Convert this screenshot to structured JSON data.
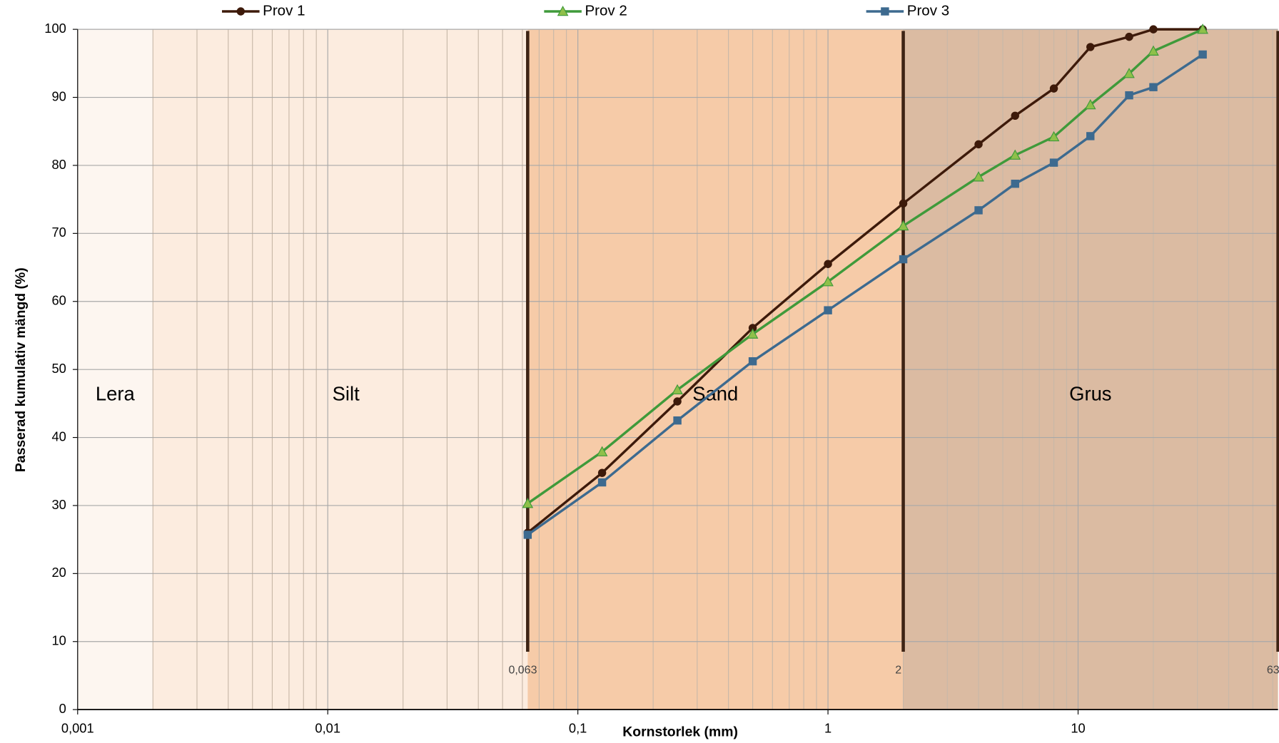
{
  "chart_data": {
    "type": "line",
    "y_label": "Passerad kumulativ mängd (%)",
    "x_label": "Kornstorlek (mm)",
    "log_x": true,
    "grid": true,
    "legend": "top",
    "xlim": [
      0.001,
      63
    ],
    "ylim": [
      0,
      100
    ],
    "yticks": [
      0,
      10,
      20,
      30,
      40,
      50,
      60,
      70,
      80,
      90,
      100
    ],
    "xticks": [
      {
        "value": 0.001,
        "label": "0,001"
      },
      {
        "value": 0.01,
        "label": "0,01"
      },
      {
        "value": 0.1,
        "label": "0,1"
      },
      1,
      10
    ],
    "regions": [
      {
        "name": "Lera",
        "from": 0.001,
        "to": 0.002,
        "color": "#fdf6f0"
      },
      {
        "name": "Silt",
        "from": 0.002,
        "to": 0.063,
        "color": "#fcecdf"
      },
      {
        "name": "Sand",
        "from": 0.063,
        "to": 2,
        "color": "#f6cba8"
      },
      {
        "name": "Grus",
        "from": 2,
        "to": 63,
        "color": "#dbbba2"
      }
    ],
    "boundaries": [
      {
        "value": 0.063,
        "label": "0,063"
      },
      2,
      63
    ],
    "x": [
      0.063,
      0.125,
      0.25,
      0.5,
      1,
      2,
      4,
      5.6,
      8,
      11.2,
      16,
      20,
      31.5
    ],
    "series": [
      {
        "name": "Prov 1",
        "color": "#3d1a0a",
        "marker": "circle",
        "values": [
          26,
          34.8,
          45.3,
          56.1,
          65.5,
          74.4,
          83.1,
          87.3,
          91.3,
          97.4,
          98.9,
          100,
          100
        ]
      },
      {
        "name": "Prov 2",
        "color": "#3f9a3a",
        "marker": "triangle",
        "values": [
          30.3,
          37.9,
          47,
          55.2,
          62.9,
          71.1,
          78.3,
          81.5,
          84.2,
          88.9,
          93.5,
          96.8,
          100
        ]
      },
      {
        "name": "Prov 3",
        "color": "#3d6a8f",
        "marker": "square",
        "values": [
          25.7,
          33.4,
          42.5,
          51.2,
          58.7,
          66.2,
          73.4,
          77.3,
          80.4,
          84.3,
          90.3,
          91.5,
          96.3
        ]
      }
    ]
  }
}
